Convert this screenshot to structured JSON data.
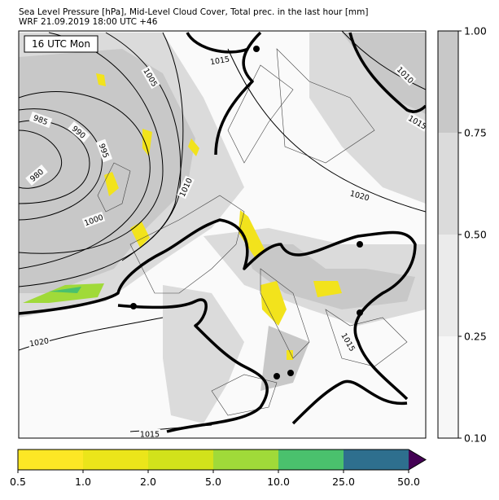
{
  "header": {
    "title": "Sea Level Pressure [hPa], Mid-Level Cloud Cover, Total prec. in the last hour [mm]",
    "subtitle": "WRF 21.09.2019 18:00 UTC +46"
  },
  "map": {
    "time_label": "16 UTC Mon",
    "isobar_labels": [
      1015,
      1005,
      985,
      990,
      995,
      980,
      1010,
      1000,
      1020,
      1020,
      1010,
      1015,
      1015,
      1015
    ]
  },
  "cloud_colorbar": {
    "colors": [
      "#f7f7f7",
      "#ebebeb",
      "#dbdbdb",
      "#c8c8c8"
    ],
    "ticks": [
      {
        "value": 0.1,
        "label": "0.10"
      },
      {
        "value": 0.25,
        "label": "0.25"
      },
      {
        "value": 0.5,
        "label": "0.50"
      },
      {
        "value": 0.75,
        "label": "0.75"
      },
      {
        "value": 1,
        "label": "1.00"
      }
    ]
  },
  "precip_colorbar": {
    "colors": [
      "#fde725",
      "#ebe51a",
      "#d2e21b",
      "#a0da39",
      "#4ac16d",
      "#2e6f8e",
      "#440154"
    ],
    "ticks": [
      0.5,
      {
        "value": 1,
        "label": "1.0"
      },
      {
        "value": 2,
        "label": "2.0"
      },
      {
        "value": 5,
        "label": "5.0"
      },
      {
        "value": 10,
        "label": "10.0"
      },
      {
        "value": 25,
        "label": "25.0"
      },
      {
        "value": 50,
        "label": "50.0"
      }
    ]
  }
}
